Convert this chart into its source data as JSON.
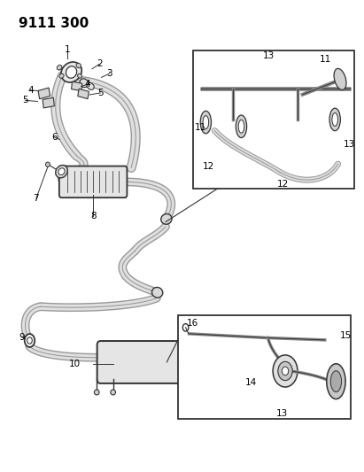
{
  "title": "9111 300",
  "bg_color": "#ffffff",
  "line_color": "#333333",
  "label_color": "#000000",
  "title_fontsize": 11,
  "label_fontsize": 7.5,
  "figsize": [
    4.11,
    5.33
  ],
  "dpi": 100
}
